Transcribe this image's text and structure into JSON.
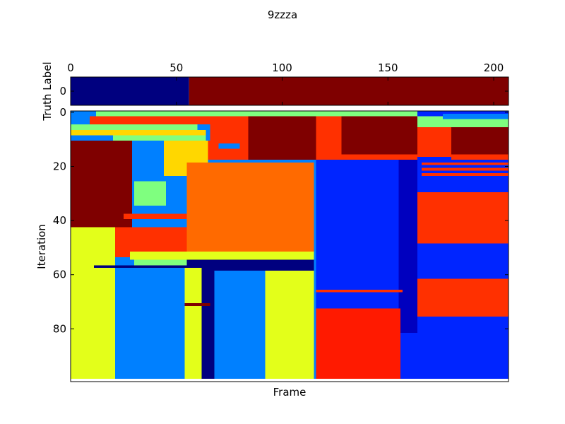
{
  "chart_data": [
    {
      "type": "heatmap",
      "panel": "truth",
      "title": "9zzza",
      "ylabel": "Truth Label",
      "xlim": [
        0,
        207
      ],
      "x_ticks": [
        0,
        50,
        100,
        150,
        200
      ],
      "y_ticks": [
        0
      ],
      "colormap": "jet",
      "rows": [
        {
          "row": 0,
          "segments": [
            {
              "from": 0,
              "to": 56,
              "color": "#00007f"
            },
            {
              "from": 56,
              "to": 207,
              "color": "#7f0000"
            }
          ]
        }
      ]
    },
    {
      "type": "heatmap",
      "panel": "iterations",
      "xlabel": "Frame",
      "ylabel": "Iteration",
      "xlim": [
        0,
        207
      ],
      "ylim": [
        0,
        99
      ],
      "y_ticks": [
        0,
        20,
        40,
        60,
        80
      ],
      "colormap": "jet",
      "blocks": [
        {
          "x0": 0,
          "x1": 207,
          "y0": 0,
          "y1": 99,
          "color": "#0080ff"
        },
        {
          "x0": 0,
          "x1": 207,
          "y0": 0,
          "y1": 2,
          "color": "#7fff7f"
        },
        {
          "x0": 0,
          "x1": 12,
          "y0": 0,
          "y1": 12,
          "color": "#0080ff"
        },
        {
          "x0": 9,
          "x1": 66,
          "y0": 2,
          "y1": 5,
          "color": "#ff3000"
        },
        {
          "x0": 0,
          "x1": 60,
          "y0": 5,
          "y1": 7,
          "color": "#7fff7f"
        },
        {
          "x0": 0,
          "x1": 64,
          "y0": 7,
          "y1": 9,
          "color": "#ffd700"
        },
        {
          "x0": 20,
          "x1": 64,
          "y0": 9,
          "y1": 11,
          "color": "#7fff7f"
        },
        {
          "x0": 66,
          "x1": 84,
          "y0": 2,
          "y1": 11,
          "color": "#ff3000"
        },
        {
          "x0": 84,
          "x1": 116,
          "y0": 2,
          "y1": 18,
          "color": "#7f0000"
        },
        {
          "x0": 0,
          "x1": 29,
          "y0": 11,
          "y1": 43,
          "color": "#7f0000"
        },
        {
          "x0": 29,
          "x1": 44,
          "y0": 12,
          "y1": 26,
          "color": "#0080ff"
        },
        {
          "x0": 44,
          "x1": 65,
          "y0": 11,
          "y1": 24,
          "color": "#ffd700"
        },
        {
          "x0": 65,
          "x1": 84,
          "y0": 11,
          "y1": 18,
          "color": "#ff3000"
        },
        {
          "x0": 70,
          "x1": 80,
          "y0": 12,
          "y1": 14,
          "color": "#0080ff"
        },
        {
          "x0": 30,
          "x1": 45,
          "y0": 26,
          "y1": 35,
          "color": "#7fff7f"
        },
        {
          "x0": 30,
          "x1": 55,
          "y0": 35,
          "y1": 38,
          "color": "#0080ff"
        },
        {
          "x0": 25,
          "x1": 55,
          "y0": 38,
          "y1": 40,
          "color": "#ff3000"
        },
        {
          "x0": 29,
          "x1": 55,
          "y0": 40,
          "y1": 43,
          "color": "#0080ff"
        },
        {
          "x0": 55,
          "x1": 115,
          "y0": 19,
          "y1": 52,
          "color": "#ff6a00"
        },
        {
          "x0": 0,
          "x1": 21,
          "y0": 43,
          "y1": 99,
          "color": "#e3ff1a"
        },
        {
          "x0": 21,
          "x1": 55,
          "y0": 43,
          "y1": 54,
          "color": "#ff3000"
        },
        {
          "x0": 28,
          "x1": 115,
          "y0": 52,
          "y1": 55,
          "color": "#e3ff1a"
        },
        {
          "x0": 30,
          "x1": 55,
          "y0": 55,
          "y1": 57,
          "color": "#7fff7f"
        },
        {
          "x0": 55,
          "x1": 115,
          "y0": 55,
          "y1": 57,
          "color": "#00007f"
        },
        {
          "x0": 11,
          "x1": 60,
          "y0": 57,
          "y1": 58,
          "color": "#00007f"
        },
        {
          "x0": 60,
          "x1": 115,
          "y0": 57,
          "y1": 59,
          "color": "#00007f"
        },
        {
          "x0": 28,
          "x1": 54,
          "y0": 58,
          "y1": 99,
          "color": "#0080ff"
        },
        {
          "x0": 54,
          "x1": 62,
          "y0": 58,
          "y1": 99,
          "color": "#e3ff1a"
        },
        {
          "x0": 62,
          "x1": 68,
          "y0": 58,
          "y1": 99,
          "color": "#00007f"
        },
        {
          "x0": 68,
          "x1": 92,
          "y0": 59,
          "y1": 99,
          "color": "#0080ff"
        },
        {
          "x0": 92,
          "x1": 115,
          "y0": 59,
          "y1": 99,
          "color": "#e3ff1a"
        },
        {
          "x0": 54,
          "x1": 66,
          "y0": 71,
          "y1": 72,
          "color": "#7f0000"
        },
        {
          "x0": 116,
          "x1": 128,
          "y0": 2,
          "y1": 18,
          "color": "#ff3000"
        },
        {
          "x0": 128,
          "x1": 164,
          "y0": 2,
          "y1": 16,
          "color": "#7f0000"
        },
        {
          "x0": 128,
          "x1": 164,
          "y0": 16,
          "y1": 18,
          "color": "#ff3000"
        },
        {
          "x0": 116,
          "x1": 164,
          "y0": 18,
          "y1": 99,
          "color": "#0025ff"
        },
        {
          "x0": 155,
          "x1": 164,
          "y0": 18,
          "y1": 82,
          "color": "#0000bf"
        },
        {
          "x0": 116,
          "x1": 157,
          "y0": 66,
          "y1": 67,
          "color": "#ff3000"
        },
        {
          "x0": 116,
          "x1": 156,
          "y0": 73,
          "y1": 99,
          "color": "#ff1a00"
        },
        {
          "x0": 164,
          "x1": 207,
          "y0": 0,
          "y1": 99,
          "color": "#0025ff"
        },
        {
          "x0": 164,
          "x1": 207,
          "y0": 2,
          "y1": 6,
          "color": "#7fff7f"
        },
        {
          "x0": 176,
          "x1": 207,
          "y0": 1,
          "y1": 3,
          "color": "#0080ff"
        },
        {
          "x0": 164,
          "x1": 180,
          "y0": 6,
          "y1": 17,
          "color": "#ff3000"
        },
        {
          "x0": 180,
          "x1": 207,
          "y0": 6,
          "y1": 16,
          "color": "#7f0000"
        },
        {
          "x0": 180,
          "x1": 207,
          "y0": 16,
          "y1": 18,
          "color": "#ff3000"
        },
        {
          "x0": 164,
          "x1": 207,
          "y0": 18,
          "y1": 30,
          "color": "#0025ff"
        },
        {
          "x0": 166,
          "x1": 207,
          "y0": 19,
          "y1": 20,
          "color": "#ff3000"
        },
        {
          "x0": 166,
          "x1": 207,
          "y0": 21,
          "y1": 22,
          "color": "#ff3000"
        },
        {
          "x0": 166,
          "x1": 207,
          "y0": 23,
          "y1": 24,
          "color": "#ff3000"
        },
        {
          "x0": 164,
          "x1": 207,
          "y0": 30,
          "y1": 49,
          "color": "#ff3000"
        },
        {
          "x0": 164,
          "x1": 207,
          "y0": 49,
          "y1": 62,
          "color": "#0025ff"
        },
        {
          "x0": 164,
          "x1": 207,
          "y0": 62,
          "y1": 76,
          "color": "#ff3000"
        },
        {
          "x0": 164,
          "x1": 207,
          "y0": 76,
          "y1": 99,
          "color": "#0025ff"
        }
      ]
    }
  ]
}
